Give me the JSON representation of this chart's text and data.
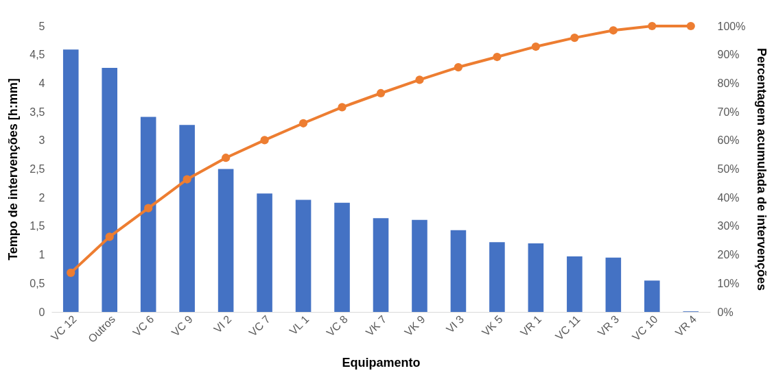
{
  "chart_data": {
    "type": "bar",
    "xlabel": "Equipamento",
    "ylabel": "Tempo de intervenções [h:mm]",
    "y2label": "Percentagem acumulada de intervenções",
    "categories": [
      "VC 12",
      "Outros",
      "VC 6",
      "VC 9",
      "VI 2",
      "VC 7",
      "VL 1",
      "VC 8",
      "VK 7",
      "VK 9",
      "VI 3",
      "VK 5",
      "VR 1",
      "VC 11",
      "VR 3",
      "VC 10",
      "VR 4"
    ],
    "series": [
      {
        "color": "#4472c4",
        "values": [
          4.59,
          4.27,
          3.41,
          3.27,
          2.5,
          2.07,
          1.96,
          1.91,
          1.64,
          1.61,
          1.43,
          1.22,
          1.2,
          0.97,
          0.95,
          0.55,
          0.01
        ]
      },
      {
        "type": "line",
        "axis": "y2",
        "color": "#ed7d31",
        "values": [
          13.7,
          26.3,
          36.3,
          46.4,
          53.9,
          60.1,
          66.0,
          71.6,
          76.5,
          81.2,
          85.6,
          89.2,
          92.8,
          95.9,
          98.5,
          100,
          100
        ]
      }
    ],
    "ylim": [
      0,
      5
    ],
    "yticks": [
      0,
      {
        "value": 0.5,
        "label": "0,5"
      },
      1,
      {
        "value": 1.5,
        "label": "1,5"
      },
      2,
      {
        "value": 2.5,
        "label": "2,5"
      },
      3,
      {
        "value": 3.5,
        "label": "3,5"
      },
      4,
      {
        "value": 4.5,
        "label": "4,5"
      },
      5
    ],
    "y2lim": [
      0,
      100
    ],
    "y2ticks": [
      {
        "value": 0,
        "label": "0%"
      },
      {
        "value": 10,
        "label": "10%"
      },
      {
        "value": 20,
        "label": "20%"
      },
      {
        "value": 30,
        "label": "30%"
      },
      {
        "value": 40,
        "label": "40%"
      },
      {
        "value": 50,
        "label": "50%"
      },
      {
        "value": 60,
        "label": "60%"
      },
      {
        "value": 70,
        "label": "70%"
      },
      {
        "value": 80,
        "label": "80%"
      },
      {
        "value": 90,
        "label": "90%"
      },
      {
        "value": 100,
        "label": "100%"
      }
    ],
    "marker": "circle",
    "line_style": "solid",
    "grid": false
  }
}
